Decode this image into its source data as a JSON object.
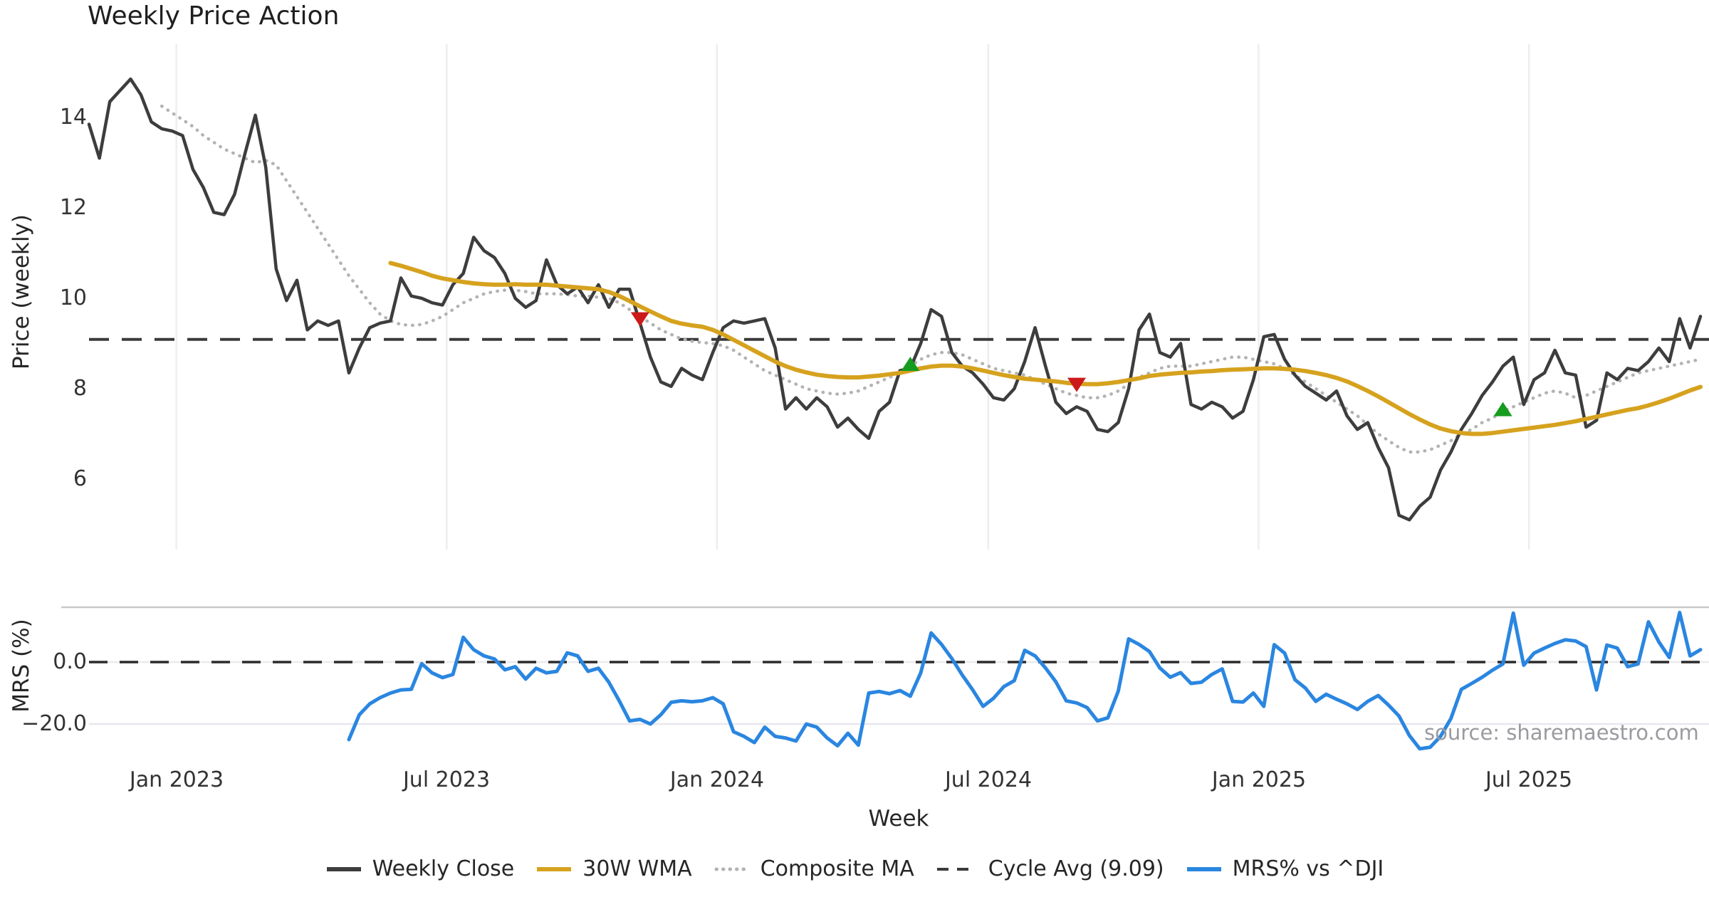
{
  "title": "Weekly Price Action",
  "source_note": "source: sharemaestro.com",
  "axes": {
    "x_label": "Week",
    "price_panel": {
      "y_label": "Price (weekly)",
      "yticks": [
        {
          "value": 14,
          "label": "14"
        },
        {
          "value": 12,
          "label": "12"
        },
        {
          "value": 10,
          "label": "10"
        },
        {
          "value": 8,
          "label": "8"
        },
        {
          "value": 6,
          "label": "6"
        }
      ]
    },
    "mrs_panel": {
      "y_label": "MRS (%)",
      "yticks": [
        {
          "value": 0,
          "label": "0.0"
        },
        {
          "value": -20,
          "label": "−20.0"
        }
      ]
    },
    "xticks": [
      {
        "week": 8.4,
        "label": "Jan 2023"
      },
      {
        "week": 34.4,
        "label": "Jul 2023"
      },
      {
        "week": 60.4,
        "label": "Jan 2024"
      },
      {
        "week": 86.5,
        "label": "Jul 2024"
      },
      {
        "week": 112.5,
        "label": "Jan 2025"
      },
      {
        "week": 138.5,
        "label": "Jul 2025"
      }
    ]
  },
  "legend": [
    {
      "label": "Weekly Close",
      "color": "#3d3d3d",
      "pattern": "solid"
    },
    {
      "label": "30W WMA",
      "color": "#d6a21e",
      "pattern": "solid"
    },
    {
      "label": "Composite MA",
      "color": "#b3b3b3",
      "pattern": "dotted"
    },
    {
      "label": "Cycle Avg (9.09)",
      "color": "#3a3a3a",
      "pattern": "dashed"
    },
    {
      "label": "MRS% vs ^DJI",
      "color": "#2a86e0",
      "pattern": "solid"
    }
  ],
  "colors": {
    "weekly_close": "#3d3d3d",
    "wma30": "#d6a21e",
    "composite": "#b3b3b3",
    "cycle_avg": "#3a3a3a",
    "mrs": "#2a86e0",
    "sell_marker": "#cc1a1a",
    "buy_marker": "#169c1e",
    "grid": "#ededf2",
    "panel_border": "#c8c8c8"
  },
  "chart_data": [
    {
      "type": "line",
      "panel": "price",
      "title": "Weekly Price Action",
      "xlabel": "Week",
      "ylabel": "Price (weekly)",
      "ylim": [
        4.6,
        15.6
      ],
      "x_unit": "week_index (w0 = first week, ~Nov 2022; 26 weeks per half-year tick)",
      "grid": "vertical-only",
      "cycle_avg": 9.09,
      "series": [
        {
          "name": "Weekly Close",
          "style": "solid",
          "start_week": 0,
          "values": [
            13.85,
            13.1,
            14.35,
            14.6,
            14.85,
            14.5,
            13.9,
            13.75,
            13.7,
            13.6,
            12.85,
            12.45,
            11.9,
            11.85,
            12.3,
            13.2,
            14.05,
            12.9,
            10.65,
            9.95,
            10.4,
            9.3,
            9.5,
            9.4,
            9.5,
            8.35,
            8.9,
            9.35,
            9.45,
            9.5,
            10.45,
            10.05,
            10.0,
            9.9,
            9.85,
            10.3,
            10.55,
            11.35,
            11.05,
            10.9,
            10.55,
            10.0,
            9.8,
            9.95,
            10.85,
            10.3,
            10.1,
            10.25,
            9.9,
            10.3,
            9.8,
            10.2,
            10.2,
            9.45,
            8.7,
            8.15,
            8.05,
            8.45,
            8.3,
            8.2,
            8.8,
            9.35,
            9.5,
            9.45,
            9.5,
            9.55,
            8.9,
            7.55,
            7.8,
            7.55,
            7.8,
            7.6,
            7.15,
            7.35,
            7.1,
            6.9,
            7.5,
            7.7,
            8.4,
            8.45,
            9.0,
            9.75,
            9.6,
            8.8,
            8.5,
            8.35,
            8.1,
            7.8,
            7.75,
            8.0,
            8.6,
            9.35,
            8.5,
            7.7,
            7.45,
            7.6,
            7.5,
            7.1,
            7.05,
            7.25,
            8.0,
            9.3,
            9.65,
            8.8,
            8.7,
            9.0,
            7.65,
            7.55,
            7.7,
            7.6,
            7.35,
            7.5,
            8.2,
            9.15,
            9.2,
            8.65,
            8.3,
            8.05,
            7.9,
            7.75,
            7.95,
            7.4,
            7.1,
            7.25,
            6.7,
            6.25,
            5.2,
            5.1,
            5.4,
            5.6,
            6.2,
            6.6,
            7.1,
            7.45,
            7.85,
            8.15,
            8.5,
            8.7,
            7.65,
            8.2,
            8.35,
            8.85,
            8.35,
            8.3,
            7.15,
            7.3,
            8.35,
            8.2,
            8.45,
            8.4,
            8.6,
            8.9,
            8.6,
            9.55,
            8.9,
            9.6
          ]
        },
        {
          "name": "30W WMA",
          "style": "solid",
          "start_week": 29,
          "values": [
            10.78,
            10.72,
            10.65,
            10.58,
            10.5,
            10.44,
            10.4,
            10.36,
            10.33,
            10.31,
            10.3,
            10.3,
            10.31,
            10.3,
            10.3,
            10.3,
            10.28,
            10.26,
            10.24,
            10.22,
            10.2,
            10.14,
            10.05,
            9.94,
            9.82,
            9.71,
            9.6,
            9.5,
            9.44,
            9.4,
            9.37,
            9.3,
            9.2,
            9.08,
            8.96,
            8.84,
            8.72,
            8.6,
            8.5,
            8.42,
            8.36,
            8.31,
            8.28,
            8.26,
            8.25,
            8.25,
            8.27,
            8.29,
            8.32,
            8.35,
            8.4,
            8.45,
            8.49,
            8.51,
            8.51,
            8.49,
            8.45,
            8.4,
            8.35,
            8.3,
            8.26,
            8.22,
            8.2,
            8.18,
            8.16,
            8.13,
            8.11,
            8.1,
            8.1,
            8.12,
            8.15,
            8.19,
            8.23,
            8.28,
            8.31,
            8.33,
            8.35,
            8.36,
            8.38,
            8.39,
            8.41,
            8.42,
            8.43,
            8.44,
            8.45,
            8.45,
            8.44,
            8.42,
            8.39,
            8.35,
            8.3,
            8.24,
            8.16,
            8.06,
            7.95,
            7.83,
            7.7,
            7.57,
            7.44,
            7.32,
            7.21,
            7.12,
            7.06,
            7.02,
            7.0,
            7.0,
            7.02,
            7.05,
            7.08,
            7.11,
            7.14,
            7.17,
            7.2,
            7.24,
            7.28,
            7.33,
            7.38,
            7.43,
            7.48,
            7.53,
            7.57,
            7.63,
            7.7,
            7.78,
            7.87,
            7.96,
            8.04
          ]
        },
        {
          "name": "Composite MA",
          "style": "dotted",
          "start_week": 7,
          "values": [
            14.25,
            14.1,
            13.95,
            13.8,
            13.6,
            13.45,
            13.3,
            13.2,
            13.1,
            13.0,
            13.05,
            12.95,
            12.6,
            12.25,
            11.9,
            11.55,
            11.2,
            10.85,
            10.5,
            10.2,
            9.9,
            9.65,
            9.5,
            9.42,
            9.4,
            9.42,
            9.5,
            9.6,
            9.75,
            9.9,
            10.0,
            10.1,
            10.15,
            10.18,
            10.18,
            10.15,
            10.1,
            10.1,
            10.1,
            10.08,
            10.05,
            10.05,
            10.02,
            10.0,
            9.9,
            9.75,
            9.6,
            9.45,
            9.3,
            9.2,
            9.1,
            9.05,
            9.02,
            9.0,
            8.95,
            8.85,
            8.7,
            8.55,
            8.4,
            8.3,
            8.2,
            8.1,
            8.0,
            7.95,
            7.9,
            7.88,
            7.9,
            7.95,
            8.05,
            8.15,
            8.25,
            8.35,
            8.5,
            8.65,
            8.75,
            8.8,
            8.8,
            8.75,
            8.65,
            8.55,
            8.45,
            8.4,
            8.35,
            8.3,
            8.2,
            8.1,
            8.0,
            7.9,
            7.85,
            7.8,
            7.8,
            7.85,
            7.95,
            8.1,
            8.25,
            8.35,
            8.45,
            8.5,
            8.5,
            8.5,
            8.55,
            8.6,
            8.65,
            8.7,
            8.7,
            8.65,
            8.6,
            8.55,
            8.45,
            8.3,
            8.15,
            8.0,
            7.85,
            7.7,
            7.55,
            7.4,
            7.2,
            7.0,
            6.85,
            6.7,
            6.6,
            6.6,
            6.65,
            6.75,
            6.85,
            7.0,
            7.1,
            7.25,
            7.35,
            7.5,
            7.6,
            7.7,
            7.8,
            7.9,
            7.95,
            7.9,
            7.8,
            7.85,
            7.95,
            8.05,
            8.15,
            8.25,
            8.35,
            8.4,
            8.45,
            8.5,
            8.55,
            8.6,
            8.65
          ]
        }
      ],
      "markers": {
        "sell": [
          {
            "week": 53,
            "price": 9.55
          },
          {
            "week": 95,
            "price": 8.1
          }
        ],
        "buy": [
          {
            "week": 79,
            "price": 8.55
          },
          {
            "week": 136,
            "price": 7.55
          }
        ]
      }
    },
    {
      "type": "line",
      "panel": "mrs",
      "xlabel": "Week",
      "ylabel": "MRS (%)",
      "ylim": [
        -29.5,
        17.5
      ],
      "zero_line": 0.0,
      "series": [
        {
          "name": "MRS% vs ^DJI",
          "style": "solid",
          "start_week": 25,
          "values": [
            -25,
            -17,
            -13.5,
            -11.5,
            -10,
            -9,
            -8.8,
            -0.5,
            -3.5,
            -5,
            -4,
            8,
            4,
            2,
            1,
            -2.5,
            -1.5,
            -5.5,
            -2,
            -3.5,
            -3,
            3,
            2,
            -3,
            -2,
            -6.5,
            -12.5,
            -19,
            -18.5,
            -20,
            -17,
            -13,
            -12.5,
            -12.8,
            -12.5,
            -11.5,
            -13.5,
            -22.5,
            -24,
            -26,
            -21,
            -24,
            -24.5,
            -25.5,
            -20,
            -21,
            -24.5,
            -27,
            -23,
            -26.8,
            -10,
            -9.5,
            -10.2,
            -9.2,
            -11,
            -3.5,
            9.4,
            5.7,
            1.1,
            -4.2,
            -9,
            -14.3,
            -11.7,
            -7.9,
            -6,
            3.8,
            2,
            -1.9,
            -6.4,
            -12.5,
            -13.2,
            -14.7,
            -19,
            -18,
            -9.4,
            7.5,
            5.7,
            3.4,
            -1.9,
            -4.9,
            -3.4,
            -6.9,
            -6.5,
            -4,
            -2.2,
            -12.7,
            -12.9,
            -10,
            -14.3,
            5.6,
            2.9,
            -5.7,
            -8.4,
            -12.7,
            -10.4,
            -12,
            -13.5,
            -15.3,
            -12.7,
            -10.8,
            -13.9,
            -17.4,
            -23.7,
            -28,
            -27.5,
            -24,
            -18.2,
            -8.8,
            -6.9,
            -4.9,
            -2.6,
            -0.6,
            15.8,
            -1,
            2.9,
            4.5,
            6,
            7.2,
            6.8,
            5,
            -9,
            5.5,
            4.5,
            -1.5,
            -0.6,
            13,
            6.5,
            1.5,
            16,
            2,
            4
          ]
        }
      ]
    }
  ]
}
